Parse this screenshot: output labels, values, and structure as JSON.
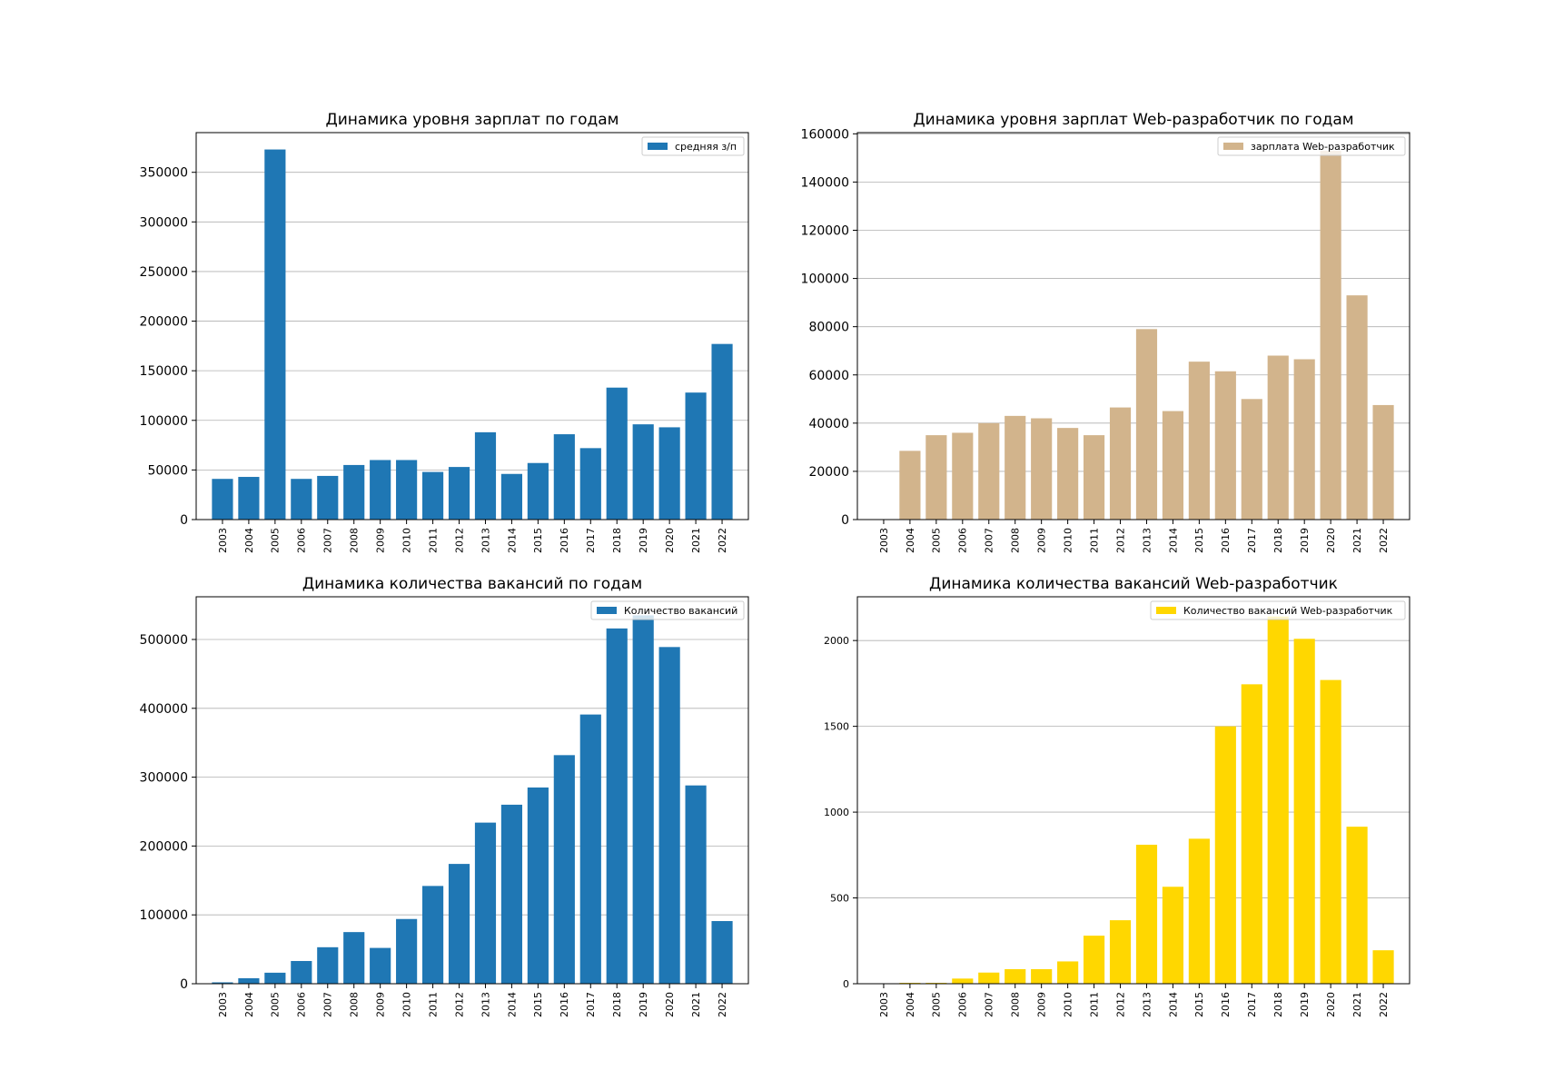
{
  "chart_data": [
    {
      "type": "bar",
      "title": "Динамика уровня зарплат по годам",
      "xlabel": "",
      "ylabel": "",
      "categories": [
        "2003",
        "2004",
        "2005",
        "2006",
        "2007",
        "2008",
        "2009",
        "2010",
        "2011",
        "2012",
        "2013",
        "2014",
        "2015",
        "2016",
        "2017",
        "2018",
        "2019",
        "2020",
        "2021",
        "2022"
      ],
      "series": [
        {
          "name": "средняя з/п",
          "color": "#1f77b4",
          "values": [
            41000,
            43000,
            373000,
            41000,
            44000,
            55000,
            60000,
            60000,
            48000,
            53000,
            88000,
            46000,
            57000,
            86000,
            72000,
            133000,
            96000,
            93000,
            128000,
            177000
          ]
        }
      ],
      "ylim": [
        0,
        390000
      ],
      "yticks": [
        0,
        50000,
        100000,
        150000,
        200000,
        250000,
        300000,
        350000
      ],
      "grid": "y",
      "legend": "top-right"
    },
    {
      "type": "bar",
      "title": "Динамика уровня зарплат Web-разработчик по годам",
      "xlabel": "",
      "ylabel": "",
      "categories": [
        "2003",
        "2004",
        "2005",
        "2006",
        "2007",
        "2008",
        "2009",
        "2010",
        "2011",
        "2012",
        "2013",
        "2014",
        "2015",
        "2016",
        "2017",
        "2018",
        "2019",
        "2020",
        "2021",
        "2022"
      ],
      "series": [
        {
          "name": "зарплата Web-разработчик",
          "color": "#d2b48c",
          "values": [
            0,
            28500,
            35000,
            36000,
            40000,
            43000,
            42000,
            38000,
            35000,
            46500,
            79000,
            45000,
            65500,
            61500,
            50000,
            68000,
            66500,
            153000,
            93000,
            47500
          ]
        }
      ],
      "ylim": [
        0,
        160500
      ],
      "yticks": [
        0,
        20000,
        40000,
        60000,
        80000,
        100000,
        120000,
        140000,
        160000
      ],
      "grid": "y",
      "legend": "top-right"
    },
    {
      "type": "bar",
      "title": "Динамика количества вакансий по годам",
      "xlabel": "",
      "ylabel": "",
      "categories": [
        "2003",
        "2004",
        "2005",
        "2006",
        "2007",
        "2008",
        "2009",
        "2010",
        "2011",
        "2012",
        "2013",
        "2014",
        "2015",
        "2016",
        "2017",
        "2018",
        "2019",
        "2020",
        "2021",
        "2022"
      ],
      "series": [
        {
          "name": "Количество вакансий",
          "color": "#1f77b4",
          "values": [
            2000,
            8000,
            16000,
            33000,
            53000,
            75000,
            52000,
            94000,
            142000,
            174000,
            234000,
            260000,
            285000,
            332000,
            391000,
            516000,
            535000,
            489000,
            288000,
            91000
          ]
        }
      ],
      "ylim": [
        0,
        562000
      ],
      "yticks": [
        0,
        100000,
        200000,
        300000,
        400000,
        500000
      ],
      "grid": "y",
      "legend": "top-right"
    },
    {
      "type": "bar",
      "title": "Динамика количества вакансий Web-разработчик",
      "xlabel": "",
      "ylabel": "",
      "categories": [
        "2003",
        "2004",
        "2005",
        "2006",
        "2007",
        "2008",
        "2009",
        "2010",
        "2011",
        "2012",
        "2013",
        "2014",
        "2015",
        "2016",
        "2017",
        "2018",
        "2019",
        "2020",
        "2021",
        "2022"
      ],
      "series": [
        {
          "name": "Количество вакансий Web-разработчик",
          "color": "#ffd700",
          "values": [
            0,
            5,
            5,
            30,
            65,
            85,
            85,
            130,
            280,
            370,
            810,
            565,
            845,
            1500,
            1745,
            2140,
            2010,
            1770,
            915,
            195
          ]
        }
      ],
      "ylim": [
        0,
        2255
      ],
      "yticks": [
        0,
        500,
        1000,
        1500,
        2000
      ],
      "grid": "y",
      "legend": "top-right"
    }
  ]
}
